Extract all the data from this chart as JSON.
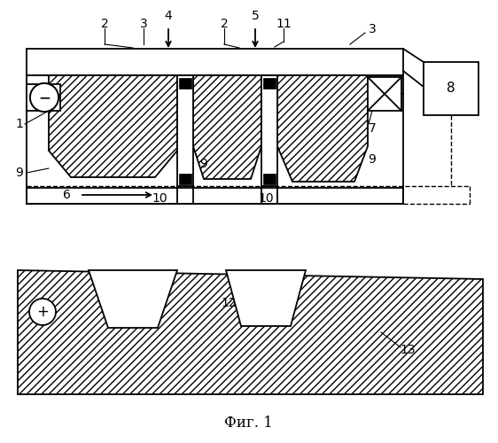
{
  "bg_color": "#ffffff",
  "line_color": "#000000",
  "title": "Фиг. 1",
  "title_fontsize": 12,
  "label_fontsize": 10,
  "lw": 1.3
}
